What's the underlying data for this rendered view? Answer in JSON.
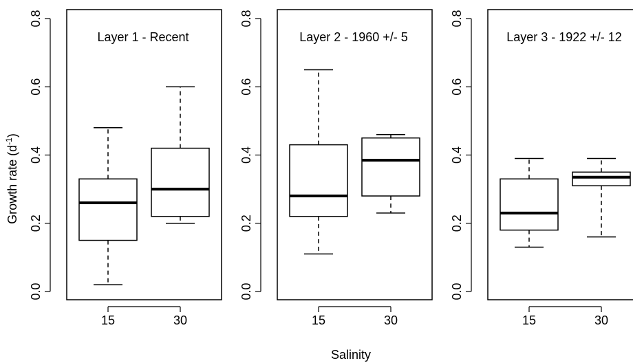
{
  "chart_data": [
    {
      "type": "box",
      "title": "Layer 1 - Recent",
      "xlabel": "",
      "ylabel": "Growth rate (d",
      "ylabel_sup": "-1",
      "ylabel_close": ")",
      "ylim": [
        0,
        0.8
      ],
      "yticks": [
        "0.0",
        "0.2",
        "0.4",
        "0.6",
        "0.8"
      ],
      "categories": [
        "15",
        "30"
      ],
      "boxes": [
        {
          "category": "15",
          "min": 0.02,
          "q1": 0.15,
          "median": 0.26,
          "q3": 0.33,
          "max": 0.48
        },
        {
          "category": "30",
          "min": 0.2,
          "q1": 0.22,
          "median": 0.3,
          "q3": 0.42,
          "max": 0.6
        }
      ]
    },
    {
      "type": "box",
      "title": "Layer 2 - 1960 +/- 5",
      "xlabel": "",
      "ylabel": "",
      "ylim": [
        0,
        0.8
      ],
      "yticks": [
        "0.0",
        "0.2",
        "0.4",
        "0.6",
        "0.8"
      ],
      "categories": [
        "15",
        "30"
      ],
      "boxes": [
        {
          "category": "15",
          "min": 0.11,
          "q1": 0.22,
          "median": 0.28,
          "q3": 0.43,
          "max": 0.65
        },
        {
          "category": "30",
          "min": 0.23,
          "q1": 0.28,
          "median": 0.385,
          "q3": 0.45,
          "max": 0.46
        }
      ]
    },
    {
      "type": "box",
      "title": "Layer 3 - 1922 +/- 12",
      "xlabel": "",
      "ylabel": "",
      "ylim": [
        0,
        0.8
      ],
      "yticks": [
        "0.0",
        "0.2",
        "0.4",
        "0.6",
        "0.8"
      ],
      "categories": [
        "15",
        "30"
      ],
      "boxes": [
        {
          "category": "15",
          "min": 0.13,
          "q1": 0.18,
          "median": 0.23,
          "q3": 0.33,
          "max": 0.39
        },
        {
          "category": "30",
          "min": 0.16,
          "q1": 0.31,
          "median": 0.335,
          "q3": 0.35,
          "max": 0.39
        }
      ]
    }
  ],
  "shared_xlabel": "Salinity"
}
